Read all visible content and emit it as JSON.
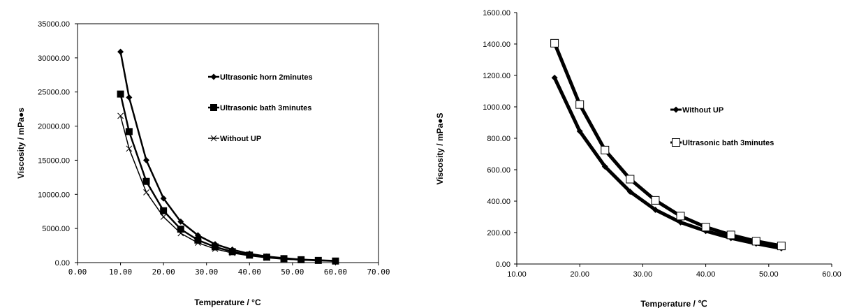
{
  "chart_data": [
    {
      "type": "line",
      "xlabel": "Temperature / °C",
      "ylabel": "Viscosity / mPa●s",
      "xlim": [
        0,
        70
      ],
      "ylim": [
        0,
        35000
      ],
      "x_tick_labels": [
        "0.00",
        "10.00",
        "20.00",
        "30.00",
        "40.00",
        "50.00",
        "60.00",
        "70.00"
      ],
      "y_tick_labels": [
        "0.00",
        "5000.00",
        "10000.00",
        "15000.00",
        "20000.00",
        "25000.00",
        "30000.00",
        "35000.00"
      ],
      "x_tick_values": [
        0,
        10,
        20,
        30,
        40,
        50,
        60,
        70
      ],
      "y_tick_values": [
        0,
        5000,
        10000,
        15000,
        20000,
        25000,
        30000,
        35000
      ],
      "legend_position": "top-right",
      "grid": false,
      "series": [
        {
          "name": "Ultrasonic horn 2minutes",
          "marker": "diamond",
          "color": "#000000",
          "x": [
            10,
            12,
            16,
            20,
            24,
            28,
            32,
            36,
            40,
            44,
            48,
            52,
            56,
            60
          ],
          "y": [
            30900,
            24200,
            15000,
            9400,
            6000,
            4000,
            2700,
            1900,
            1300,
            900,
            650,
            450,
            350,
            250
          ]
        },
        {
          "name": "Ultrasonic bath 3minutes",
          "marker": "square",
          "color": "#000000",
          "x": [
            10,
            12,
            16,
            20,
            24,
            28,
            32,
            36,
            40,
            44,
            48,
            52,
            56,
            60
          ],
          "y": [
            24700,
            19200,
            11900,
            7600,
            4900,
            3300,
            2300,
            1600,
            1100,
            800,
            580,
            420,
            320,
            230
          ]
        },
        {
          "name": "Without UP",
          "marker": "x",
          "color": "#000000",
          "x": [
            10,
            12,
            16,
            20,
            24,
            28,
            32,
            36,
            40,
            44,
            48,
            52,
            56,
            60
          ],
          "y": [
            21500,
            16700,
            10300,
            6700,
            4300,
            2900,
            2000,
            1400,
            1000,
            700,
            500,
            380,
            290,
            210
          ]
        }
      ]
    },
    {
      "type": "line",
      "xlabel": "Temperature / ℃",
      "ylabel": "Viscosity / mPa●S",
      "xlim": [
        10,
        60
      ],
      "ylim": [
        0,
        1600
      ],
      "x_tick_labels": [
        "10.00",
        "20.00",
        "30.00",
        "40.00",
        "50.00",
        "60.00"
      ],
      "y_tick_labels": [
        "0.00",
        "200.00",
        "400.00",
        "600.00",
        "800.00",
        "1000.00",
        "1200.00",
        "1400.00",
        "1600.00"
      ],
      "x_tick_values": [
        10,
        20,
        30,
        40,
        50,
        60
      ],
      "y_tick_values": [
        0,
        200,
        400,
        600,
        800,
        1000,
        1200,
        1400,
        1600
      ],
      "legend_position": "right",
      "grid": false,
      "series": [
        {
          "name": "Without UP",
          "marker": "diamond",
          "color": "#000000",
          "x": [
            16,
            20,
            24,
            28,
            32,
            36,
            40,
            44,
            48,
            52
          ],
          "y": [
            1185,
            845,
            620,
            460,
            345,
            265,
            210,
            165,
            130,
            100
          ]
        },
        {
          "name": "Ultrasonic bath 3minutes",
          "marker": "open-square",
          "color": "#000000",
          "x": [
            16,
            20,
            24,
            28,
            32,
            36,
            40,
            44,
            48,
            52
          ],
          "y": [
            1405,
            1015,
            725,
            540,
            405,
            305,
            235,
            185,
            145,
            115
          ]
        }
      ]
    }
  ]
}
